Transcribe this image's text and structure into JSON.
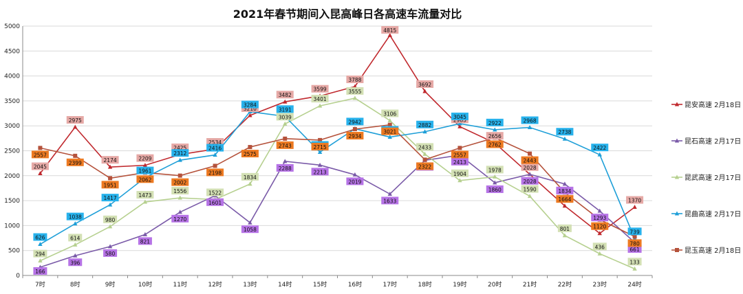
{
  "chart_data": {
    "type": "line",
    "title": "2021年春节期间入昆高峰日各高速车流量对比",
    "categories": [
      "7时",
      "8时",
      "9时",
      "10时",
      "11时",
      "12时",
      "13时",
      "14时",
      "15时",
      "16时",
      "17时",
      "18时",
      "19时",
      "20时",
      "21时",
      "22时",
      "23时",
      "24时"
    ],
    "ylim": [
      0,
      5000
    ],
    "yticks": [
      0,
      500,
      1000,
      1500,
      2000,
      2500,
      3000,
      3500,
      4000,
      4500,
      5000
    ],
    "grid": true,
    "legend_position": "right",
    "series": [
      {
        "name": "昆安高速 2月18日",
        "color": "#c0282d",
        "marker": "triangle",
        "label_color": "#e6a9a6",
        "values": [
          2045,
          2975,
          2174,
          2209,
          2425,
          2534,
          3210,
          3482,
          3599,
          3788,
          4815,
          3692,
          2985,
          2656,
          2028,
          1395,
          844,
          1370
        ]
      },
      {
        "name": "昆石高速 2月17日",
        "color": "#7a5aa8",
        "marker": "triangle",
        "label_color": "#b673e6",
        "values": [
          166,
          396,
          580,
          821,
          1270,
          1601,
          1058,
          2288,
          2213,
          2019,
          1633,
          2309,
          2413,
          1860,
          2028,
          1834,
          1293,
          661
        ]
      },
      {
        "name": "昆武高速 2月17日",
        "color": "#b6d08f",
        "marker": "triangle",
        "label_color": "#d3e0b4",
        "values": [
          294,
          614,
          980,
          1473,
          1556,
          1522,
          1834,
          3039,
          3401,
          3555,
          3106,
          2433,
          1904,
          1978,
          1590,
          801,
          436,
          133
        ]
      },
      {
        "name": "昆曲高速 2月17日",
        "color": "#1e9fd8",
        "marker": "triangle",
        "label_color": "#28b2ec",
        "values": [
          626,
          1038,
          1417,
          1961,
          2312,
          2416,
          3284,
          3191,
          2473,
          2942,
          2775,
          2882,
          3045,
          2922,
          2968,
          2738,
          2422,
          739
        ]
      },
      {
        "name": "昆玉高速 2月18日",
        "color": "#b5523b",
        "marker": "square",
        "label_color": "#ed7a22",
        "values": [
          2557,
          2399,
          1951,
          2062,
          2002,
          2198,
          2575,
          2743,
          2715,
          2934,
          3021,
          2322,
          2557,
          2762,
          2443,
          1664,
          1120,
          780
        ]
      }
    ]
  }
}
